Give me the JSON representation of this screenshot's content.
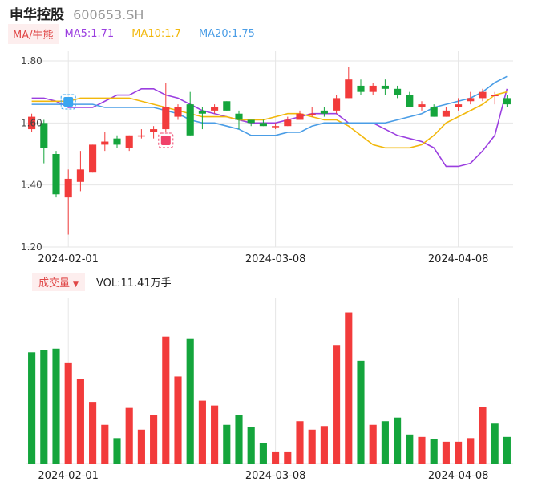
{
  "header": {
    "stock_name": "申华控股",
    "stock_code": "600653.SH"
  },
  "ma_bar": {
    "toggle_label": "MA/牛熊",
    "ma5": {
      "label": "MA5:1.71",
      "color": "#9b3fe0"
    },
    "ma10": {
      "label": "MA10:1.7",
      "color": "#f2b80c"
    },
    "ma20": {
      "label": "MA20:1.75",
      "color": "#4a9de6"
    }
  },
  "volume_bar": {
    "toggle_label": "成交量",
    "vol_label": "VOL:11.41万手"
  },
  "colors": {
    "up": "#f23b3b",
    "down": "#14a53c",
    "grid": "#e6e6e6",
    "marker_blue": "#3aa6f0",
    "marker_red": "#f0426a"
  },
  "chart_data": [
    {
      "type": "candlestick",
      "y_ticks": [
        "1.80",
        "1.60",
        "1.40",
        "1.20"
      ],
      "y_tick_values": [
        1.8,
        1.6,
        1.4,
        1.2
      ],
      "ylim": [
        1.2,
        1.85
      ],
      "x_tick_labels": [
        {
          "index": 3,
          "label": "2024-02-01"
        },
        {
          "index": 20,
          "label": "2024-03-08"
        },
        {
          "index": 35,
          "label": "2024-04-08"
        }
      ],
      "grid": true,
      "candles": [
        {
          "o": 1.58,
          "c": 1.62,
          "h": 1.63,
          "l": 1.57
        },
        {
          "o": 1.6,
          "c": 1.52,
          "h": 1.61,
          "l": 1.47
        },
        {
          "o": 1.5,
          "c": 1.37,
          "h": 1.51,
          "l": 1.36
        },
        {
          "o": 1.36,
          "c": 1.42,
          "h": 1.45,
          "l": 1.24
        },
        {
          "o": 1.41,
          "c": 1.45,
          "h": 1.51,
          "l": 1.38
        },
        {
          "o": 1.44,
          "c": 1.53,
          "h": 1.53,
          "l": 1.44
        },
        {
          "o": 1.53,
          "c": 1.54,
          "h": 1.57,
          "l": 1.51
        },
        {
          "o": 1.55,
          "c": 1.53,
          "h": 1.56,
          "l": 1.52
        },
        {
          "o": 1.52,
          "c": 1.56,
          "h": 1.56,
          "l": 1.51
        },
        {
          "o": 1.56,
          "c": 1.56,
          "h": 1.58,
          "l": 1.55
        },
        {
          "o": 1.57,
          "c": 1.58,
          "h": 1.59,
          "l": 1.55
        },
        {
          "o": 1.58,
          "c": 1.65,
          "h": 1.73,
          "l": 1.57
        },
        {
          "o": 1.62,
          "c": 1.65,
          "h": 1.66,
          "l": 1.61
        },
        {
          "o": 1.66,
          "c": 1.56,
          "h": 1.7,
          "l": 1.56
        },
        {
          "o": 1.64,
          "c": 1.63,
          "h": 1.65,
          "l": 1.58
        },
        {
          "o": 1.64,
          "c": 1.65,
          "h": 1.66,
          "l": 1.63
        },
        {
          "o": 1.67,
          "c": 1.64,
          "h": 1.67,
          "l": 1.64
        },
        {
          "o": 1.63,
          "c": 1.61,
          "h": 1.64,
          "l": 1.58
        },
        {
          "o": 1.61,
          "c": 1.6,
          "h": 1.61,
          "l": 1.59
        },
        {
          "o": 1.6,
          "c": 1.59,
          "h": 1.61,
          "l": 1.59
        },
        {
          "o": 1.59,
          "c": 1.59,
          "h": 1.6,
          "l": 1.58
        },
        {
          "o": 1.59,
          "c": 1.61,
          "h": 1.62,
          "l": 1.59
        },
        {
          "o": 1.61,
          "c": 1.63,
          "h": 1.64,
          "l": 1.61
        },
        {
          "o": 1.63,
          "c": 1.63,
          "h": 1.65,
          "l": 1.62
        },
        {
          "o": 1.64,
          "c": 1.63,
          "h": 1.65,
          "l": 1.62
        },
        {
          "o": 1.64,
          "c": 1.68,
          "h": 1.69,
          "l": 1.63
        },
        {
          "o": 1.68,
          "c": 1.74,
          "h": 1.78,
          "l": 1.68
        },
        {
          "o": 1.72,
          "c": 1.7,
          "h": 1.74,
          "l": 1.69
        },
        {
          "o": 1.7,
          "c": 1.72,
          "h": 1.73,
          "l": 1.69
        },
        {
          "o": 1.72,
          "c": 1.71,
          "h": 1.74,
          "l": 1.69
        },
        {
          "o": 1.71,
          "c": 1.69,
          "h": 1.72,
          "l": 1.68
        },
        {
          "o": 1.69,
          "c": 1.65,
          "h": 1.7,
          "l": 1.65
        },
        {
          "o": 1.65,
          "c": 1.66,
          "h": 1.67,
          "l": 1.64
        },
        {
          "o": 1.65,
          "c": 1.62,
          "h": 1.66,
          "l": 1.62
        },
        {
          "o": 1.62,
          "c": 1.64,
          "h": 1.65,
          "l": 1.62
        },
        {
          "o": 1.65,
          "c": 1.66,
          "h": 1.68,
          "l": 1.64
        },
        {
          "o": 1.67,
          "c": 1.68,
          "h": 1.7,
          "l": 1.66
        },
        {
          "o": 1.68,
          "c": 1.7,
          "h": 1.71,
          "l": 1.67
        },
        {
          "o": 1.69,
          "c": 1.69,
          "h": 1.7,
          "l": 1.66
        },
        {
          "o": 1.68,
          "c": 1.66,
          "h": 1.69,
          "l": 1.65
        }
      ],
      "series": [
        {
          "name": "MA5",
          "color": "#9b3fe0",
          "values": [
            1.68,
            1.68,
            1.67,
            1.65,
            1.65,
            1.65,
            1.67,
            1.69,
            1.69,
            1.71,
            1.71,
            1.69,
            1.68,
            1.66,
            1.64,
            1.63,
            1.62,
            1.61,
            1.6,
            1.6,
            1.6,
            1.61,
            1.62,
            1.63,
            1.63,
            1.63,
            1.6,
            1.6,
            1.6,
            1.58,
            1.56,
            1.55,
            1.54,
            1.52,
            1.46,
            1.46,
            1.47,
            1.51,
            1.56,
            1.71
          ]
        },
        {
          "name": "MA10",
          "color": "#f2b80c",
          "values": [
            1.67,
            1.67,
            1.67,
            1.67,
            1.68,
            1.68,
            1.68,
            1.68,
            1.68,
            1.67,
            1.66,
            1.65,
            1.64,
            1.63,
            1.62,
            1.62,
            1.62,
            1.61,
            1.61,
            1.61,
            1.62,
            1.63,
            1.63,
            1.62,
            1.61,
            1.61,
            1.59,
            1.56,
            1.53,
            1.52,
            1.52,
            1.52,
            1.53,
            1.56,
            1.6,
            1.62,
            1.64,
            1.66,
            1.69,
            1.7
          ]
        },
        {
          "name": "MA20",
          "color": "#4a9de6",
          "values": [
            1.66,
            1.66,
            1.66,
            1.66,
            1.66,
            1.66,
            1.65,
            1.65,
            1.65,
            1.65,
            1.65,
            1.64,
            1.63,
            1.61,
            1.6,
            1.6,
            1.59,
            1.58,
            1.56,
            1.56,
            1.56,
            1.57,
            1.57,
            1.59,
            1.6,
            1.6,
            1.6,
            1.6,
            1.6,
            1.6,
            1.61,
            1.62,
            1.63,
            1.65,
            1.66,
            1.67,
            1.68,
            1.7,
            1.73,
            1.75
          ]
        }
      ]
    },
    {
      "type": "bar",
      "name": "VOL",
      "values": [
        92,
        94,
        95,
        83,
        70,
        51,
        32,
        21,
        46,
        28,
        40,
        105,
        72,
        103,
        52,
        48,
        32,
        40,
        30,
        17,
        10,
        10,
        35,
        28,
        31,
        98,
        125,
        85,
        32,
        35,
        38,
        24,
        22,
        20,
        18,
        18,
        21,
        47,
        33,
        22
      ],
      "up": [
        false,
        false,
        false,
        true,
        true,
        true,
        true,
        false,
        true,
        true,
        true,
        true,
        true,
        false,
        true,
        true,
        false,
        false,
        false,
        false,
        true,
        true,
        true,
        true,
        true,
        true,
        true,
        false,
        true,
        false,
        false,
        false,
        true,
        false,
        true,
        true,
        true,
        true,
        false,
        false
      ]
    }
  ]
}
